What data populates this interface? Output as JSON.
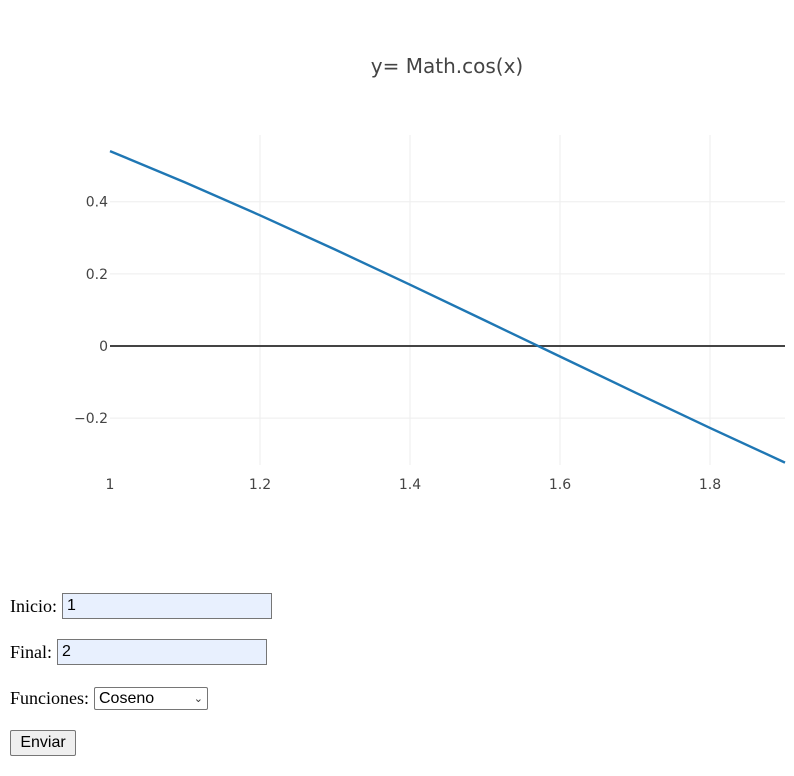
{
  "chart_data": {
    "type": "line",
    "title": "y= Math.cos(x)",
    "xlabel": "",
    "ylabel": "",
    "xlim": [
      1,
      1.9
    ],
    "ylim": [
      -0.33,
      0.585
    ],
    "x_ticks": [
      1,
      1.2,
      1.4,
      1.6,
      1.8
    ],
    "x_tick_labels": [
      "1",
      "1.2",
      "1.4",
      "1.6",
      "1.8"
    ],
    "y_ticks": [
      0.4,
      0.2,
      0,
      -0.2
    ],
    "y_tick_labels": [
      "0.4",
      "0.2",
      "0",
      "−0.2"
    ],
    "grid": true,
    "series": [
      {
        "color": "#1f77b4",
        "x": [
          1,
          1.1,
          1.2,
          1.3,
          1.4,
          1.5,
          1.6,
          1.7,
          1.8,
          1.9
        ],
        "y": [
          0.5403,
          0.4536,
          0.3624,
          0.2675,
          0.17,
          0.0707,
          -0.0292,
          -0.1288,
          -0.2272,
          -0.3233
        ]
      }
    ]
  },
  "form": {
    "inicio_label": "Inicio:",
    "inicio_value": "1",
    "final_label": "Final:",
    "final_value": "2",
    "funciones_label": "Funciones:",
    "funciones_selected": "Coseno",
    "submit_label": "Enviar"
  }
}
